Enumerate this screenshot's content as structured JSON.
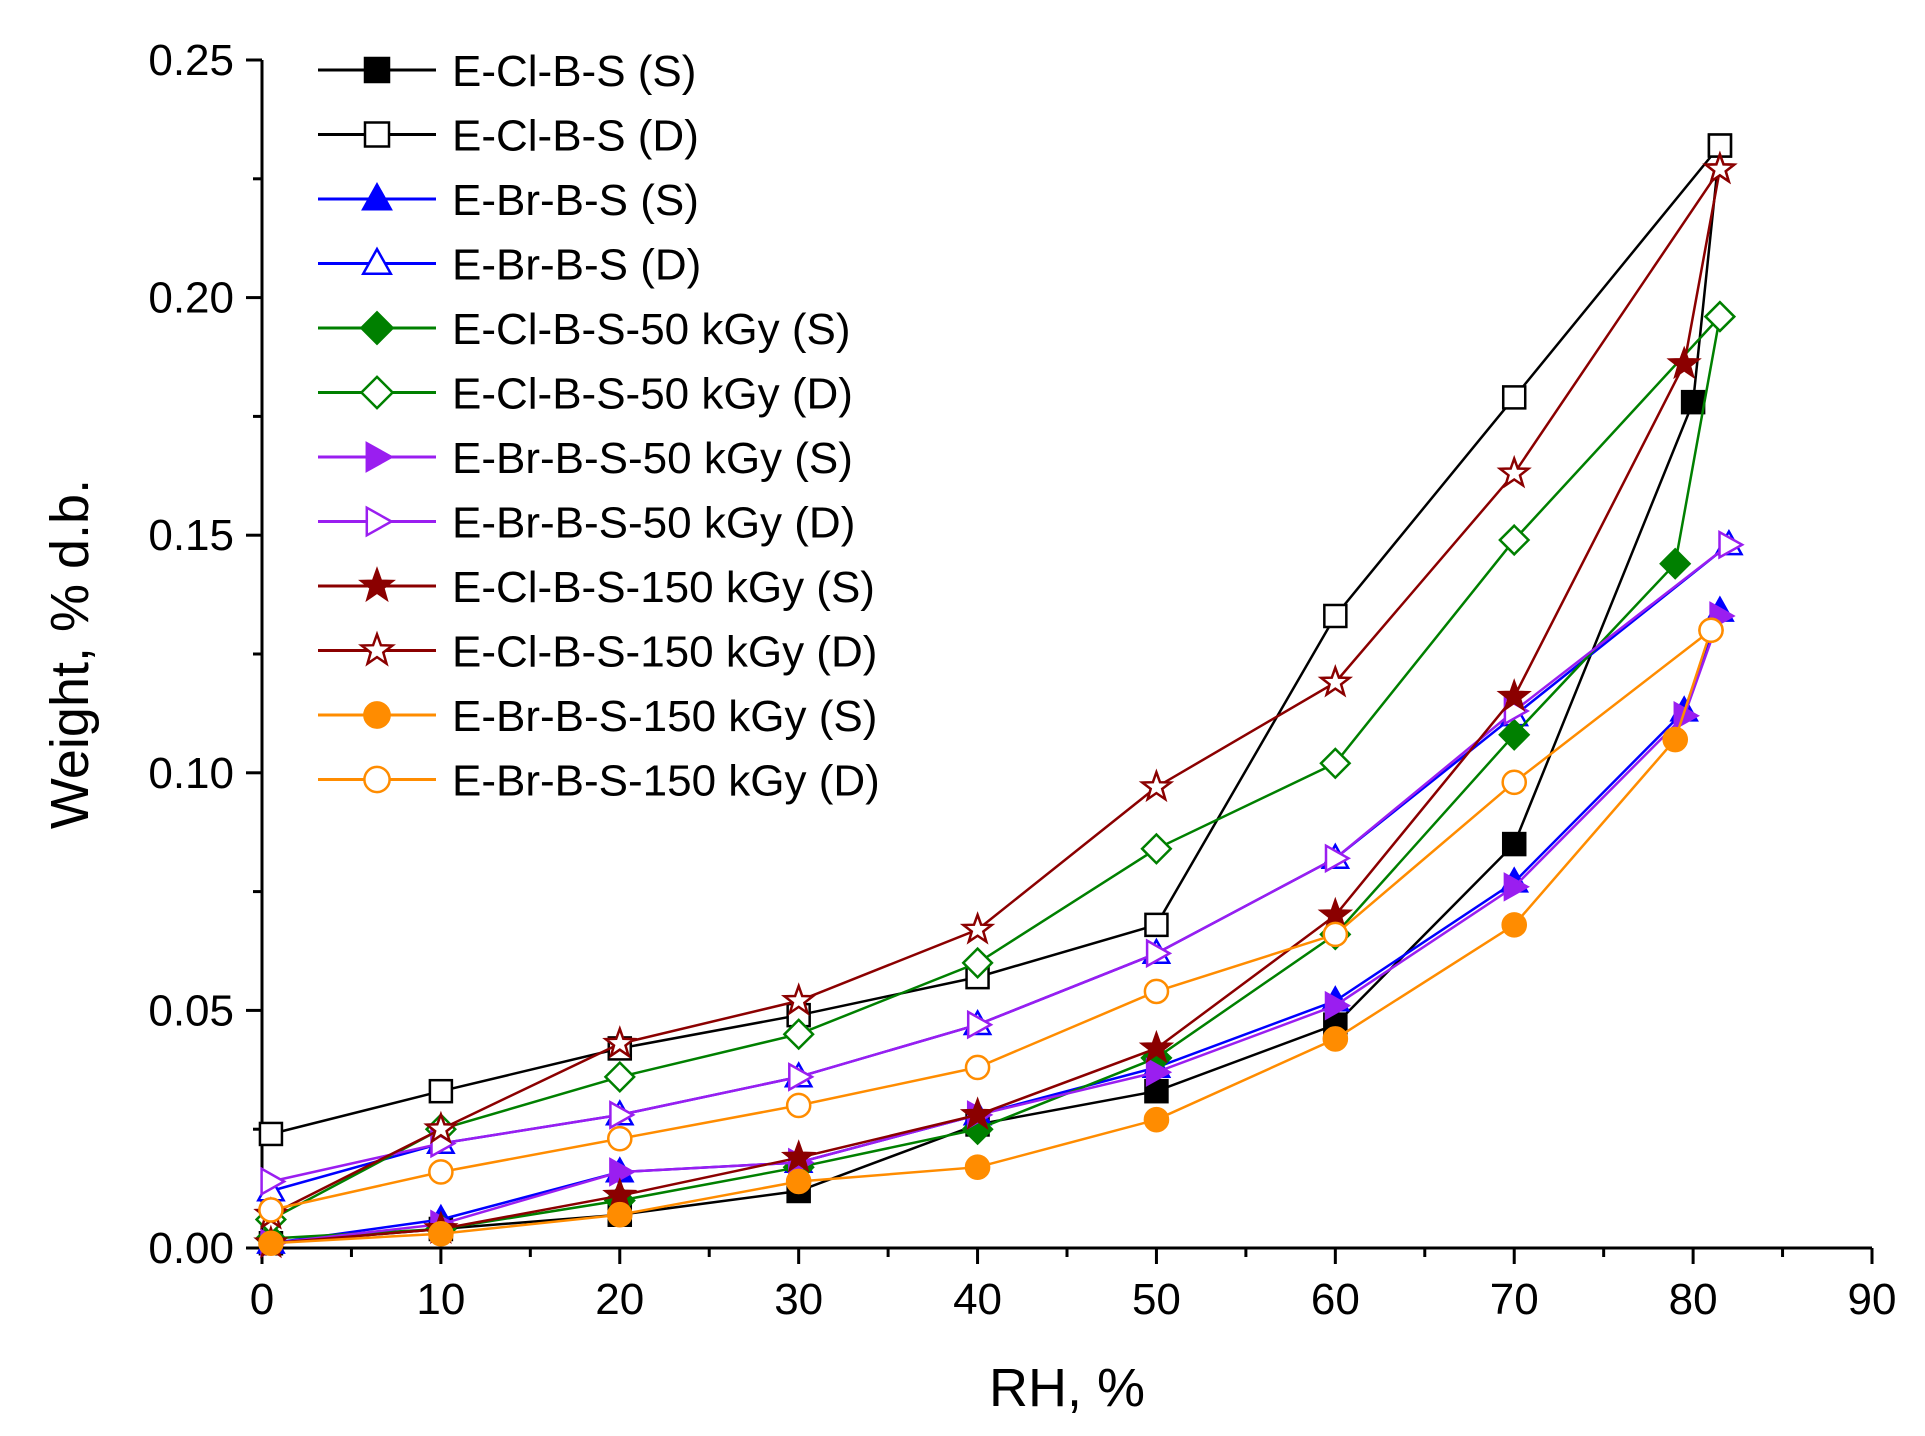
{
  "chart_data": {
    "type": "line",
    "title": "",
    "xlabel": "RH, %",
    "ylabel": "Weight, % d.b.",
    "xlim": [
      0,
      90
    ],
    "ylim": [
      0,
      0.25
    ],
    "x_ticks": [
      "0",
      "10",
      "20",
      "30",
      "40",
      "50",
      "60",
      "70",
      "80",
      "90"
    ],
    "y_ticks": [
      "0.00",
      "0.05",
      "0.10",
      "0.15",
      "0.20",
      "0.25"
    ],
    "grid": false,
    "legend_position": "top-left",
    "series": [
      {
        "name": "E-Cl-B-S (S)",
        "color": "#000000",
        "marker": "square",
        "filled": true,
        "x": [
          0.5,
          10,
          20,
          30,
          40,
          50,
          60,
          70,
          80,
          81.5
        ],
        "y": [
          0.001,
          0.004,
          0.007,
          0.012,
          0.026,
          0.033,
          0.047,
          0.085,
          0.178,
          0.232
        ]
      },
      {
        "name": "E-Cl-B-S (D)",
        "color": "#000000",
        "marker": "square",
        "filled": false,
        "x": [
          0.5,
          10,
          20,
          30,
          40,
          50,
          60,
          70,
          81.5
        ],
        "y": [
          0.024,
          0.033,
          0.042,
          0.049,
          0.057,
          0.068,
          0.133,
          0.179,
          0.232
        ]
      },
      {
        "name": "E-Br-B-S (S)",
        "color": "#0000ff",
        "marker": "triangle-up",
        "filled": true,
        "x": [
          0.5,
          10,
          20,
          30,
          40,
          50,
          60,
          70,
          79.5,
          81.5
        ],
        "y": [
          0.001,
          0.006,
          0.016,
          0.018,
          0.028,
          0.038,
          0.052,
          0.077,
          0.113,
          0.134
        ]
      },
      {
        "name": "E-Br-B-S (D)",
        "color": "#0000ff",
        "marker": "triangle-up",
        "filled": false,
        "x": [
          0.5,
          10,
          20,
          30,
          40,
          50,
          60,
          70,
          82
        ],
        "y": [
          0.012,
          0.022,
          0.028,
          0.036,
          0.047,
          0.062,
          0.082,
          0.112,
          0.148
        ]
      },
      {
        "name": "E-Cl-B-S-50 kGy (S)",
        "color": "#008000",
        "marker": "diamond",
        "filled": true,
        "x": [
          0.5,
          10,
          20,
          30,
          40,
          50,
          60,
          70,
          79,
          81.5
        ],
        "y": [
          0.002,
          0.004,
          0.01,
          0.017,
          0.025,
          0.04,
          0.066,
          0.108,
          0.144,
          0.196
        ]
      },
      {
        "name": "E-Cl-B-S-50 kGy (D)",
        "color": "#008000",
        "marker": "diamond",
        "filled": false,
        "x": [
          0.5,
          10,
          20,
          30,
          40,
          50,
          60,
          70,
          81.5
        ],
        "y": [
          0.006,
          0.025,
          0.036,
          0.045,
          0.06,
          0.084,
          0.102,
          0.149,
          0.196
        ]
      },
      {
        "name": "E-Br-B-S-50 kGy (S)",
        "color": "#9a1ef0",
        "marker": "triangle-right",
        "filled": true,
        "x": [
          0.5,
          10,
          20,
          30,
          40,
          50,
          60,
          70,
          79.5,
          81.5
        ],
        "y": [
          0.001,
          0.005,
          0.016,
          0.018,
          0.028,
          0.037,
          0.051,
          0.076,
          0.112,
          0.133
        ]
      },
      {
        "name": "E-Br-B-S-50 kGy (D)",
        "color": "#9a1ef0",
        "marker": "triangle-right",
        "filled": false,
        "x": [
          0.5,
          10,
          20,
          30,
          40,
          50,
          60,
          70,
          82
        ],
        "y": [
          0.014,
          0.022,
          0.028,
          0.036,
          0.047,
          0.062,
          0.082,
          0.113,
          0.148
        ]
      },
      {
        "name": "E-Cl-B-S-150 kGy (S)",
        "color": "#8b0000",
        "marker": "star",
        "filled": true,
        "x": [
          0.5,
          10,
          20,
          30,
          40,
          50,
          60,
          70,
          79.5,
          81.5
        ],
        "y": [
          0.001,
          0.004,
          0.011,
          0.019,
          0.028,
          0.042,
          0.07,
          0.116,
          0.186,
          0.227
        ]
      },
      {
        "name": "E-Cl-B-S-150 kGy (D)",
        "color": "#8b0000",
        "marker": "star",
        "filled": false,
        "x": [
          0.5,
          10,
          20,
          30,
          40,
          50,
          60,
          70,
          81.5
        ],
        "y": [
          0.007,
          0.025,
          0.043,
          0.052,
          0.067,
          0.097,
          0.119,
          0.163,
          0.227
        ]
      },
      {
        "name": "E-Br-B-S-150 kGy (S)",
        "color": "#ff8c00",
        "marker": "circle",
        "filled": true,
        "x": [
          0.5,
          10,
          20,
          30,
          40,
          50,
          60,
          70,
          79,
          81
        ],
        "y": [
          0.001,
          0.003,
          0.007,
          0.014,
          0.017,
          0.027,
          0.044,
          0.068,
          0.107,
          0.13
        ]
      },
      {
        "name": "E-Br-B-S-150 kGy (D)",
        "color": "#ff8c00",
        "marker": "circle",
        "filled": false,
        "x": [
          0.5,
          10,
          20,
          30,
          40,
          50,
          60,
          70,
          81
        ],
        "y": [
          0.008,
          0.016,
          0.023,
          0.03,
          0.038,
          0.054,
          0.066,
          0.098,
          0.13
        ]
      }
    ]
  }
}
